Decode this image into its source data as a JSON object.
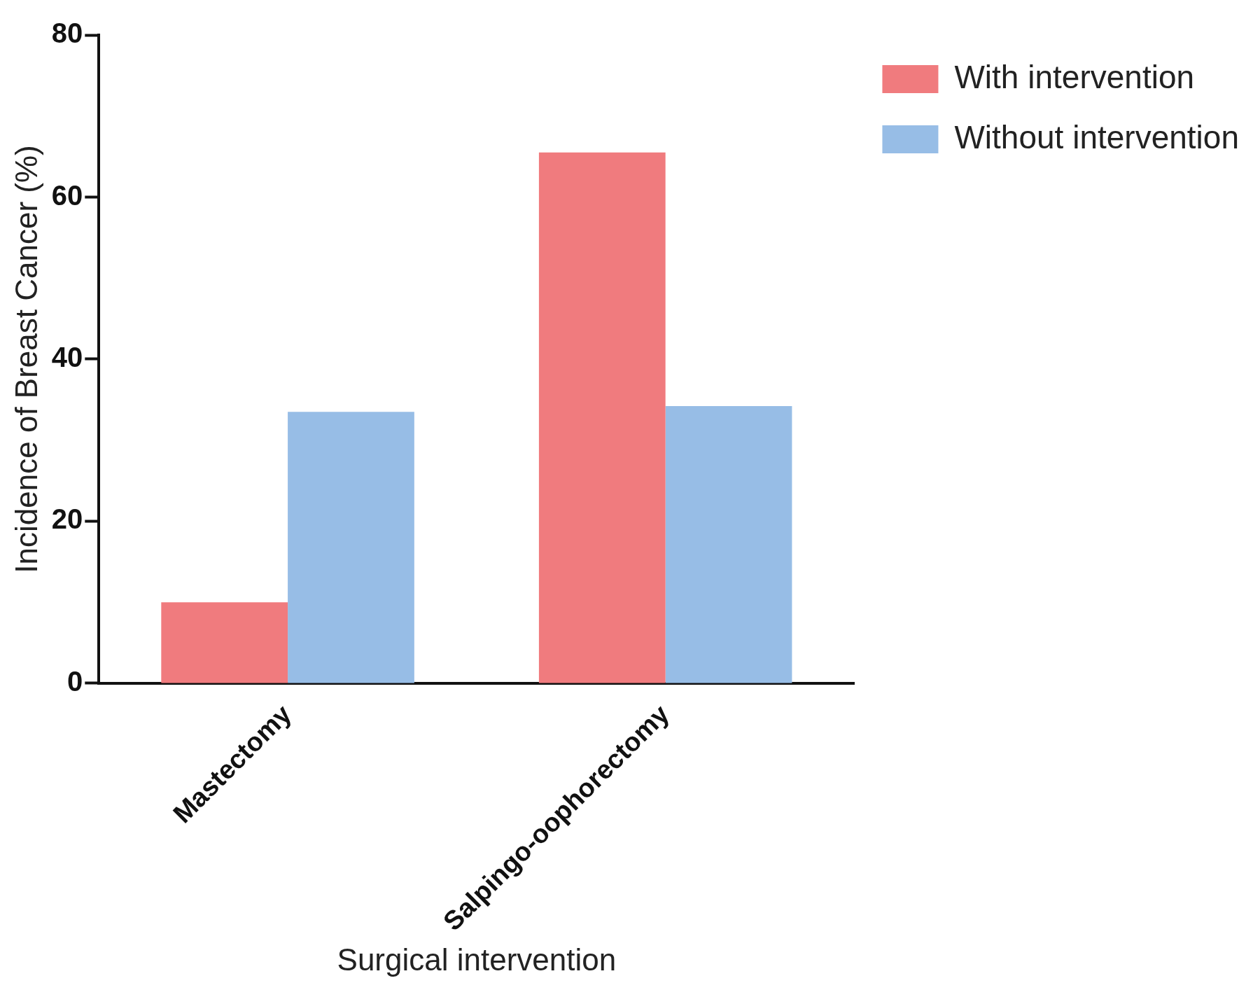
{
  "chart_data": {
    "type": "bar",
    "xlabel": "Surgical intervention",
    "ylabel": "Incidence of Breast Cancer (%)",
    "categories": [
      "Mastectomy",
      "Salpingo-oophorectomy"
    ],
    "series": [
      {
        "name": "With intervention",
        "color": "#f07b7e",
        "values": [
          10,
          65.5
        ]
      },
      {
        "name": "Without intervention",
        "color": "#97bde6",
        "values": [
          33.5,
          34.2
        ]
      }
    ],
    "ylim": [
      0,
      80
    ],
    "yticks": [
      0,
      20,
      40,
      60,
      80
    ],
    "grid": false,
    "legend": "top right"
  }
}
